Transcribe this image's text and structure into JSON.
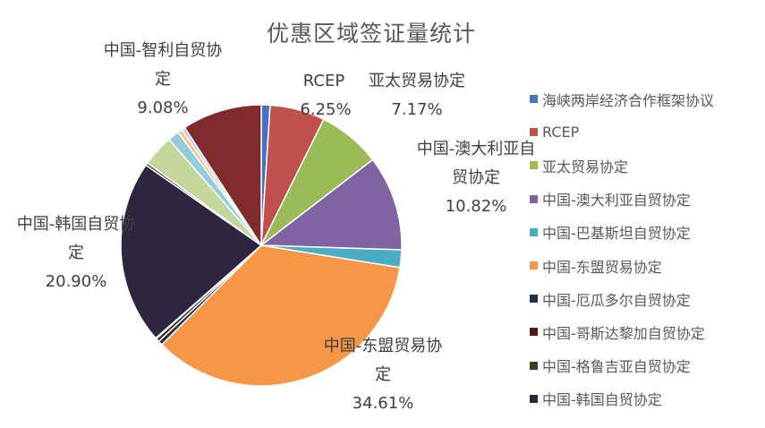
{
  "chart_data": {
    "type": "pie",
    "title": "优惠区域签证量统计",
    "series": [
      {
        "name": "海峡两岸经济合作框架协议",
        "value": 1.0,
        "color": "#4472C4"
      },
      {
        "name": "RCEP",
        "value": 6.25,
        "color": "#C0504D",
        "label": "6.25%"
      },
      {
        "name": "亚太贸易协定",
        "value": 7.17,
        "color": "#9BBB59",
        "label": "7.17%"
      },
      {
        "name": "中国-澳大利亚自贸协定",
        "value": 10.82,
        "color": "#8064A2",
        "label": "10.82%"
      },
      {
        "name": "中国-巴基斯坦自贸协定",
        "value": 2.0,
        "color": "#4BACC6"
      },
      {
        "name": "中国-东盟贸易协定",
        "value": 34.61,
        "color": "#F79646",
        "label": "34.61%"
      },
      {
        "name": "中国-厄瓜多尔自贸协定",
        "value": 0.5,
        "color": "#1F3144"
      },
      {
        "name": "中国-哥斯达黎加自贸协定",
        "value": 0.4,
        "color": "#4B1E1C"
      },
      {
        "name": "中国-格鲁吉亚自贸协定",
        "value": 0.1,
        "color": "#33401F"
      },
      {
        "name": "中国-韩国自贸协定",
        "value": 20.9,
        "color": "#2E2540",
        "label": "20.90%"
      },
      {
        "name": "",
        "value": 0.3,
        "color": "#4B3E2A"
      },
      {
        "name": "",
        "value": 3.6,
        "color": "#C3D69B"
      },
      {
        "name": "",
        "value": 1.3,
        "color": "#92CDDC"
      },
      {
        "name": "",
        "value": 0.5,
        "color": "#FAC090"
      },
      {
        "name": "",
        "value": 0.4,
        "color": "#B9CDE5"
      },
      {
        "name": "中国-智利自贸协定",
        "value": 9.08,
        "color": "#7F2B2B",
        "label": "9.08%"
      }
    ],
    "slice_labels": [
      {
        "series": "RCEP",
        "name_lines": [
          "RCEP"
        ],
        "pct": "6.25%"
      },
      {
        "series": "亚太贸易协定",
        "name_lines": [
          "亚太贸易协定"
        ],
        "pct": "7.17%"
      },
      {
        "series": "中国-澳大利亚自贸协定",
        "name_lines": [
          "中国-澳大利亚自",
          "贸协定"
        ],
        "pct": "10.82%"
      },
      {
        "series": "中国-东盟贸易协定",
        "name_lines": [
          "中国-东盟贸易协",
          "定"
        ],
        "pct": "34.61%"
      },
      {
        "series": "中国-韩国自贸协定",
        "name_lines": [
          "中国-韩国自贸协",
          "定"
        ],
        "pct": "20.90%"
      },
      {
        "series": "中国-智利自贸协定",
        "name_lines": [
          "中国-智利自贸协",
          "定"
        ],
        "pct": "9.08%"
      }
    ],
    "legend_position": "right",
    "legend": [
      {
        "name": "海峡两岸经济合作框架协议",
        "color": "#4472C4"
      },
      {
        "name": "RCEP",
        "color": "#C0504D"
      },
      {
        "name": "亚太贸易协定",
        "color": "#9BBB59"
      },
      {
        "name": "中国-澳大利亚自贸协定",
        "color": "#8064A2"
      },
      {
        "name": "中国-巴基斯坦自贸协定",
        "color": "#4BACC6"
      },
      {
        "name": "中国-东盟贸易协定",
        "color": "#F79646"
      },
      {
        "name": "中国-厄瓜多尔自贸协定",
        "color": "#1F3144"
      },
      {
        "name": "中国-哥斯达黎加自贸协定",
        "color": "#4B1E1C"
      },
      {
        "name": "中国-格鲁吉亚自贸协定",
        "color": "#33401F"
      },
      {
        "name": "中国-韩国自贸协定",
        "color": "#2E2540"
      }
    ]
  }
}
